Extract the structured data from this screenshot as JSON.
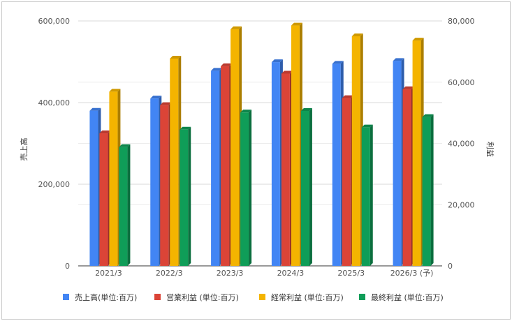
{
  "chart_data": {
    "type": "bar",
    "categories": [
      "2021/3",
      "2022/3",
      "2023/3",
      "2024/3",
      "2025/3",
      "2026/3 (予)"
    ],
    "series": [
      {
        "name": "売上高(単位:百万)",
        "axis": "left",
        "color": "#4285F4",
        "values": [
          380000,
          410000,
          478000,
          499000,
          495000,
          502000
        ]
      },
      {
        "name": "営業利益 (単位:百万)",
        "axis": "right",
        "color": "#DB4437",
        "values": [
          43300,
          52500,
          65200,
          62800,
          54800,
          57700
        ]
      },
      {
        "name": "経常利益 (単位:百万)",
        "axis": "right",
        "color": "#F4B400",
        "values": [
          56900,
          67700,
          77300,
          78500,
          75000,
          73600
        ]
      },
      {
        "name": "最終利益 (単位:百万)",
        "axis": "right",
        "color": "#0F9D58",
        "values": [
          38800,
          44500,
          50100,
          50600,
          45200,
          48600
        ]
      }
    ],
    "y_left": {
      "label": "売上高",
      "min": 0,
      "max": 600000,
      "ticks": [
        "0",
        "200,000",
        "400,000",
        "600,000"
      ]
    },
    "y_right": {
      "label": "利益",
      "min": 0,
      "max": 80000,
      "ticks": [
        "0",
        "20,000",
        "40,000",
        "60,000",
        "80,000"
      ]
    },
    "grid": true,
    "legend": "bottom"
  }
}
